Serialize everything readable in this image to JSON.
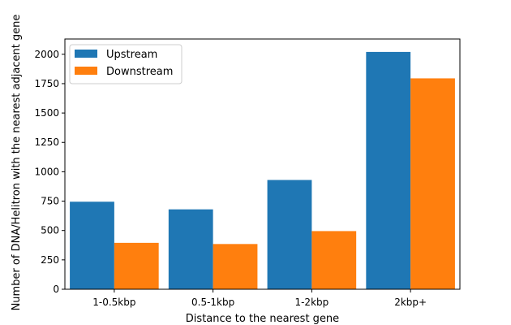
{
  "chart_data": {
    "type": "bar",
    "title": "",
    "categories": [
      "1-0.5kbp",
      "0.5-1kbp",
      "1-2kbp",
      "2kbp+"
    ],
    "series": [
      {
        "name": "Upstream",
        "color": "#1f77b4",
        "values": [
          745,
          680,
          930,
          2020
        ]
      },
      {
        "name": "Downstream",
        "color": "#ff7f0e",
        "values": [
          395,
          385,
          495,
          1795
        ]
      }
    ],
    "xlabel": "Distance to the nearest gene",
    "ylabel": "Number of DNA/Helitron with the nearest adjacent gene",
    "ylim": [
      0,
      2130
    ],
    "yticks": [
      0,
      250,
      500,
      750,
      1000,
      1250,
      1500,
      1750,
      2000
    ],
    "grid": false,
    "legend_position": "top-left"
  }
}
